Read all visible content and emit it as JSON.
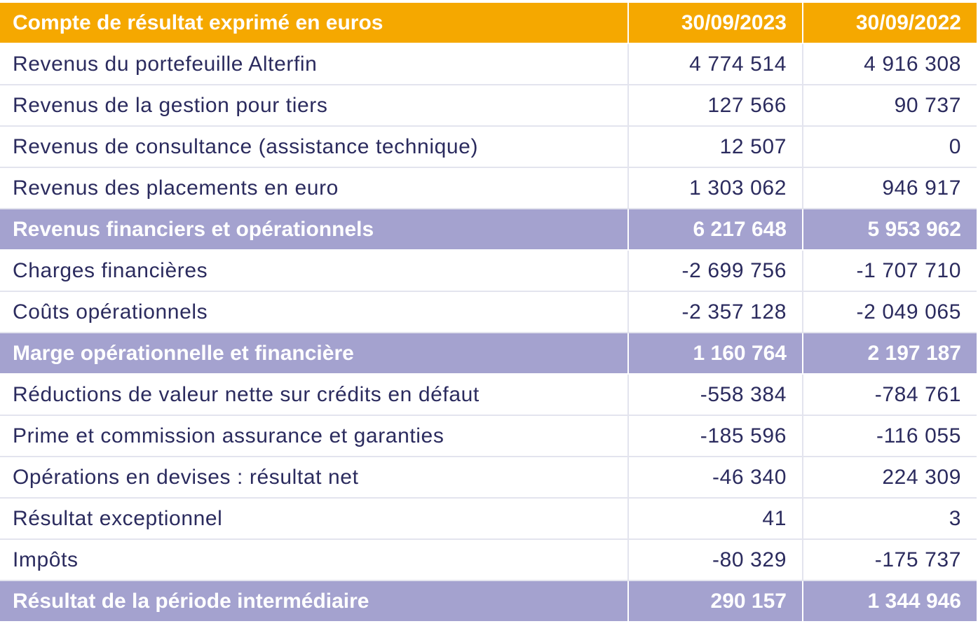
{
  "header": {
    "title": "Compte de résultat exprimé en euros",
    "col1": "30/09/2023",
    "col2": "30/09/2022"
  },
  "rows": [
    {
      "label": "Revenus du portefeuille Alterfin",
      "v2023": "4 774 514",
      "v2022": "4 916 308",
      "type": "normal"
    },
    {
      "label": "Revenus de la gestion pour tiers",
      "v2023": "127 566",
      "v2022": "90 737",
      "type": "normal"
    },
    {
      "label": "Revenus de consultance (assistance technique)",
      "v2023": "12 507",
      "v2022": "0",
      "type": "normal"
    },
    {
      "label": "Revenus des placements en euro",
      "v2023": "1 303 062",
      "v2022": "946 917",
      "type": "normal"
    },
    {
      "label": "Revenus financiers et opérationnels",
      "v2023": "6 217 648",
      "v2022": "5 953 962",
      "type": "subtotal"
    },
    {
      "label": "Charges financières",
      "v2023": "-2 699 756",
      "v2022": "-1 707 710",
      "type": "normal"
    },
    {
      "label": "Coûts opérationnels",
      "v2023": "-2 357 128",
      "v2022": "-2 049 065",
      "type": "normal"
    },
    {
      "label": "Marge opérationnelle et financière",
      "v2023": "1 160 764",
      "v2022": "2 197 187",
      "type": "subtotal"
    },
    {
      "label": "Réductions de valeur nette sur crédits en défaut",
      "v2023": "-558 384",
      "v2022": "-784 761",
      "type": "normal"
    },
    {
      "label": "Prime et commission assurance et garanties",
      "v2023": "-185 596",
      "v2022": "-116 055",
      "type": "normal"
    },
    {
      "label": "Opérations en devises : résultat net",
      "v2023": "-46 340",
      "v2022": "224 309",
      "type": "normal"
    },
    {
      "label": "Résultat exceptionnel",
      "v2023": "41",
      "v2022": "3",
      "type": "normal"
    },
    {
      "label": "Impôts",
      "v2023": "-80 329",
      "v2022": "-175 737",
      "type": "normal"
    },
    {
      "label": "Résultat de la période intermédiaire",
      "v2023": "290 157",
      "v2022": "1 344 946",
      "type": "subtotal"
    }
  ],
  "colors": {
    "header_bg": "#f5a800",
    "subtotal_bg": "#a4a2cf",
    "text": "#2b2b5e",
    "grid": "#e3e4ee"
  }
}
